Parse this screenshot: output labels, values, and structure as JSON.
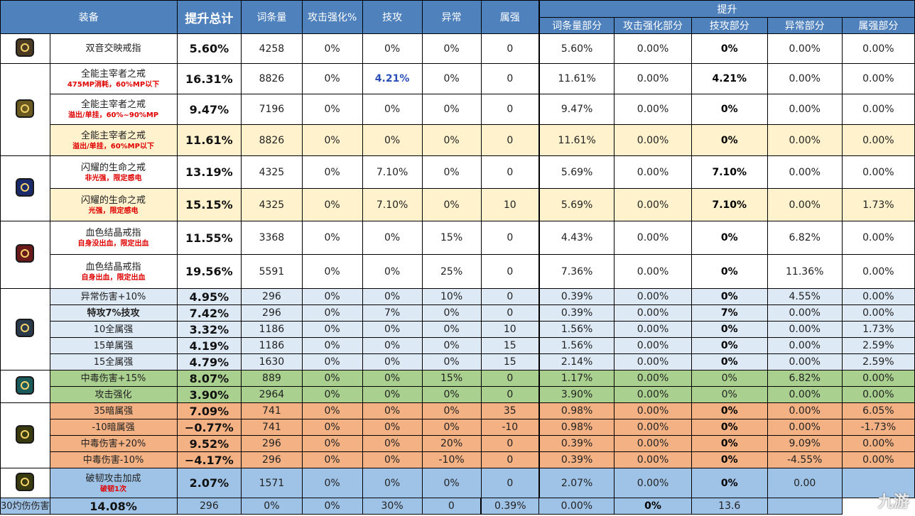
{
  "headers": {
    "equip": "装备",
    "total": "提升总计",
    "entries": "词条量",
    "atk": "攻击强化%",
    "skill": "技攻",
    "abnormal": "异常",
    "element": "属强",
    "boost": "提升",
    "p_entries": "词条量部分",
    "p_atk": "攻击强化部分",
    "p_skill": "技攻部分",
    "p_abnormal": "异常部分",
    "p_element": "属强部分"
  },
  "icons": [
    "ring-1-icon",
    "ring-2-icon",
    "ring-3-icon",
    "ring-4-icon",
    "ring-5-icon",
    "ring-6-icon",
    "ring-7-icon"
  ],
  "rows": [
    {
      "name": "双音交映戒指",
      "sub": "",
      "total": "5.60%",
      "entries": "4258",
      "atk": "0%",
      "skill": "0%",
      "abn": "0%",
      "elem": "0",
      "pe": "5.60%",
      "pa": "0.00%",
      "ps": "0%",
      "pab": "0.00%",
      "pel": "0.00%"
    },
    {
      "name": "全能主宰者之戒",
      "sub": "475MP消耗，60%MP以下",
      "total": "16.31%",
      "entries": "8826",
      "atk": "0%",
      "skill": "4.21%",
      "abn": "0%",
      "elem": "0",
      "pe": "11.61%",
      "pa": "0.00%",
      "ps": "4.21%",
      "pab": "0.00%",
      "pel": "0.00%"
    },
    {
      "name": "全能主宰者之戒",
      "sub": "溢出/单挂，60%~90%MP",
      "total": "9.47%",
      "entries": "7196",
      "atk": "0%",
      "skill": "0%",
      "abn": "0%",
      "elem": "0",
      "pe": "9.47%",
      "pa": "0.00%",
      "ps": "0%",
      "pab": "0.00%",
      "pel": "0.00%"
    },
    {
      "name": "全能主宰者之戒",
      "sub": "溢出/单挂，60%MP以下",
      "total": "11.61%",
      "entries": "8826",
      "atk": "0%",
      "skill": "0%",
      "abn": "0%",
      "elem": "0",
      "pe": "11.61%",
      "pa": "0.00%",
      "ps": "0%",
      "pab": "0.00%",
      "pel": "0.00%"
    },
    {
      "name": "闪耀的生命之戒",
      "sub": "非光强，限定感电",
      "total": "13.19%",
      "entries": "4325",
      "atk": "0%",
      "skill": "7.10%",
      "abn": "0%",
      "elem": "0",
      "pe": "5.69%",
      "pa": "0.00%",
      "ps": "7.10%",
      "pab": "0.00%",
      "pel": "0.00%"
    },
    {
      "name": "闪耀的生命之戒",
      "sub": "光强，限定感电",
      "total": "15.15%",
      "entries": "4325",
      "atk": "0%",
      "skill": "7.10%",
      "abn": "0%",
      "elem": "10",
      "pe": "5.69%",
      "pa": "0.00%",
      "ps": "7.10%",
      "pab": "0.00%",
      "pel": "1.73%"
    },
    {
      "name": "血色结晶戒指",
      "sub": "自身没出血，限定出血",
      "total": "11.55%",
      "entries": "3368",
      "atk": "0%",
      "skill": "0%",
      "abn": "15%",
      "elem": "0",
      "pe": "4.43%",
      "pa": "0.00%",
      "ps": "0%",
      "pab": "6.82%",
      "pel": "0.00%"
    },
    {
      "name": "血色结晶戒指",
      "sub": "自身出血，限定出血",
      "total": "19.56%",
      "entries": "5591",
      "atk": "0%",
      "skill": "0%",
      "abn": "25%",
      "elem": "0",
      "pe": "7.36%",
      "pa": "0.00%",
      "ps": "0%",
      "pab": "11.36%",
      "pel": "0.00%"
    },
    {
      "name": "异常伤害+10%",
      "sub": "",
      "total": "4.95%",
      "entries": "296",
      "atk": "0%",
      "skill": "0%",
      "abn": "10%",
      "elem": "0",
      "pe": "0.39%",
      "pa": "0.00%",
      "ps": "0%",
      "pab": "4.55%",
      "pel": "0.00%"
    },
    {
      "name": "特攻7%技攻",
      "sub": "",
      "total": "7.42%",
      "entries": "296",
      "atk": "0%",
      "skill": "7%",
      "abn": "0%",
      "elem": "0",
      "pe": "0.39%",
      "pa": "0.00%",
      "ps": "7%",
      "pab": "0.00%",
      "pel": "0.00%"
    },
    {
      "name": "10全属强",
      "sub": "",
      "total": "3.32%",
      "entries": "1186",
      "atk": "0%",
      "skill": "0%",
      "abn": "0%",
      "elem": "10",
      "pe": "1.56%",
      "pa": "0.00%",
      "ps": "0%",
      "pab": "0.00%",
      "pel": "1.73%"
    },
    {
      "name": "15单属强",
      "sub": "",
      "total": "4.19%",
      "entries": "1186",
      "atk": "0%",
      "skill": "0%",
      "abn": "0%",
      "elem": "15",
      "pe": "1.56%",
      "pa": "0.00%",
      "ps": "0%",
      "pab": "0.00%",
      "pel": "2.59%"
    },
    {
      "name": "15全属强",
      "sub": "",
      "total": "4.79%",
      "entries": "1630",
      "atk": "0%",
      "skill": "0%",
      "abn": "0%",
      "elem": "15",
      "pe": "2.14%",
      "pa": "0.00%",
      "ps": "0%",
      "pab": "0.00%",
      "pel": "2.59%"
    },
    {
      "name": "中毒伤害+15%",
      "sub": "",
      "total": "8.07%",
      "entries": "889",
      "atk": "0%",
      "skill": "0%",
      "abn": "15%",
      "elem": "0",
      "pe": "1.17%",
      "pa": "0.00%",
      "ps": "0%",
      "pab": "6.82%",
      "pel": "0.00%"
    },
    {
      "name": "攻击强化",
      "sub": "",
      "total": "3.90%",
      "entries": "2964",
      "atk": "0%",
      "skill": "0%",
      "abn": "0%",
      "elem": "0",
      "pe": "3.90%",
      "pa": "0.00%",
      "ps": "0%",
      "pab": "0.00%",
      "pel": "0.00%"
    },
    {
      "name": "35暗属强",
      "sub": "",
      "total": "7.09%",
      "entries": "741",
      "atk": "0%",
      "skill": "0%",
      "abn": "0%",
      "elem": "35",
      "pe": "0.98%",
      "pa": "0.00%",
      "ps": "0%",
      "pab": "0.00%",
      "pel": "6.05%"
    },
    {
      "name": "-10暗属强",
      "sub": "",
      "total": "−0.77%",
      "entries": "741",
      "atk": "0%",
      "skill": "0%",
      "abn": "0%",
      "elem": "-10",
      "pe": "0.98%",
      "pa": "0.00%",
      "ps": "0%",
      "pab": "0.00%",
      "pel": "-1.73%"
    },
    {
      "name": "中毒伤害+20%",
      "sub": "",
      "total": "9.52%",
      "entries": "296",
      "atk": "0%",
      "skill": "0%",
      "abn": "20%",
      "elem": "0",
      "pe": "0.39%",
      "pa": "0.00%",
      "ps": "0%",
      "pab": "9.09%",
      "pel": "0.00%"
    },
    {
      "name": "中毒伤害-10%",
      "sub": "",
      "total": "−4.17%",
      "entries": "296",
      "atk": "0%",
      "skill": "0%",
      "abn": "-10%",
      "elem": "0",
      "pe": "0.39%",
      "pa": "0.00%",
      "ps": "0%",
      "pab": "-4.55%",
      "pel": "0.00%"
    },
    {
      "name": "破韧攻击加成",
      "sub": "破韧1次",
      "total": "2.07%",
      "entries": "1571",
      "atk": "0%",
      "skill": "0%",
      "abn": "0%",
      "elem": "0",
      "pe": "2.07%",
      "pa": "0.00%",
      "ps": "0%",
      "pab": "0.00",
      "pel": ""
    },
    {
      "name": "30灼伤伤害",
      "sub": "",
      "total": "14.08%",
      "entries": "296",
      "atk": "0%",
      "skill": "0%",
      "abn": "30%",
      "elem": "0",
      "pe": "0.39%",
      "pa": "0.00%",
      "ps": "0%",
      "pab": "13.6",
      "pel": ""
    }
  ],
  "watermark": "九游"
}
